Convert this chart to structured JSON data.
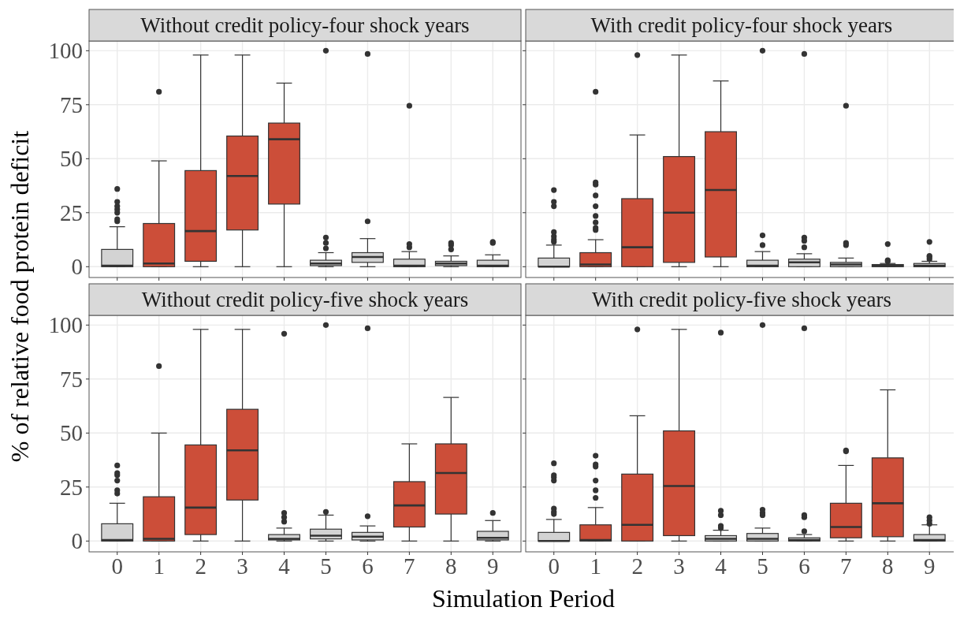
{
  "chart_data": [
    {
      "type": "box",
      "title": "Without credit policy-four shock years",
      "ylabel": "% of relative food protein deficit",
      "categories": [
        "0",
        "1",
        "2",
        "3",
        "4",
        "5",
        "6",
        "7",
        "8",
        "9"
      ],
      "ylim": [
        -5,
        104.5
      ],
      "yticks": [
        0,
        25,
        50,
        75,
        100
      ],
      "grid": true,
      "tick_labels": "y",
      "colors": [
        "#d3d3d3",
        "#cc4e39",
        "#cc4e39",
        "#cc4e39",
        "#cc4e39",
        "#d3d3d3",
        "#d3d3d3",
        "#d3d3d3",
        "#d3d3d3",
        "#d3d3d3"
      ],
      "boxes": [
        {
          "low": 0,
          "q1": 0,
          "median": 0.5,
          "q3": 8,
          "high": 18.5,
          "outliers": [
            21,
            22,
            25,
            26.5,
            28,
            30,
            36
          ]
        },
        {
          "low": 0,
          "q1": 0,
          "median": 1.5,
          "q3": 20,
          "high": 49,
          "outliers": [
            81
          ]
        },
        {
          "low": 0,
          "q1": 2.5,
          "median": 16.5,
          "q3": 44.5,
          "high": 98
        },
        {
          "low": 0,
          "q1": 17,
          "median": 42,
          "q3": 60.5,
          "high": 98
        },
        {
          "low": 0,
          "q1": 29,
          "median": 59,
          "q3": 66.5,
          "high": 85
        },
        {
          "low": 0,
          "q1": 0.5,
          "median": 1.5,
          "q3": 3,
          "high": 6.5,
          "outliers": [
            8.5,
            11,
            13.5,
            100
          ]
        },
        {
          "low": 0,
          "q1": 2,
          "median": 4.5,
          "q3": 6.5,
          "high": 13,
          "outliers": [
            21,
            98.5
          ]
        },
        {
          "low": 0,
          "q1": 0,
          "median": 0.5,
          "q3": 3.5,
          "high": 7,
          "outliers": [
            9,
            10.5,
            74.5
          ]
        },
        {
          "low": 0,
          "q1": 0.5,
          "median": 1.5,
          "q3": 2.5,
          "high": 5,
          "outliers": [
            8,
            10,
            11
          ]
        },
        {
          "low": 0,
          "q1": 0,
          "median": 0.5,
          "q3": 3,
          "high": 5.5,
          "outliers": [
            11,
            11.5
          ]
        }
      ]
    },
    {
      "type": "box",
      "title": "With credit policy-four shock years",
      "categories": [
        "0",
        "1",
        "2",
        "3",
        "4",
        "5",
        "6",
        "7",
        "8",
        "9"
      ],
      "ylim": [
        -5,
        104.5
      ],
      "yticks": [
        0,
        25,
        50,
        75,
        100
      ],
      "grid": true,
      "tick_labels": false,
      "colors": [
        "#d3d3d3",
        "#cc4e39",
        "#cc4e39",
        "#cc4e39",
        "#cc4e39",
        "#d3d3d3",
        "#d3d3d3",
        "#d3d3d3",
        "#d3d3d3",
        "#d3d3d3"
      ],
      "boxes": [
        {
          "low": 0,
          "q1": 0,
          "median": 0,
          "q3": 4,
          "high": 10,
          "outliers": [
            11.5,
            12.5,
            14,
            16,
            28,
            30,
            35.5
          ]
        },
        {
          "low": 0,
          "q1": 0,
          "median": 1,
          "q3": 6.5,
          "high": 12.5,
          "outliers": [
            17,
            18,
            20.5,
            23.5,
            28,
            33,
            38,
            39,
            81
          ]
        },
        {
          "low": 0,
          "q1": 0,
          "median": 9,
          "q3": 31.5,
          "high": 61,
          "outliers": [
            98
          ]
        },
        {
          "low": 0,
          "q1": 2,
          "median": 25,
          "q3": 51,
          "high": 98
        },
        {
          "low": 0,
          "q1": 4.5,
          "median": 35.5,
          "q3": 62.5,
          "high": 86
        },
        {
          "low": 0,
          "q1": 0,
          "median": 0.5,
          "q3": 3,
          "high": 7,
          "outliers": [
            10,
            14.5,
            100
          ]
        },
        {
          "low": 0,
          "q1": 0,
          "median": 2,
          "q3": 3.5,
          "high": 6,
          "outliers": [
            9,
            12,
            13.5,
            98.5
          ]
        },
        {
          "low": 0,
          "q1": 0,
          "median": 1,
          "q3": 2,
          "high": 4,
          "outliers": [
            10,
            11,
            74.5
          ]
        },
        {
          "low": 0,
          "q1": 0,
          "median": 0.5,
          "q3": 1,
          "high": 1.5,
          "outliers": [
            2.5,
            3,
            10.5
          ]
        },
        {
          "low": 0,
          "q1": 0,
          "median": 0.5,
          "q3": 1.5,
          "high": 2.5,
          "outliers": [
            3.5,
            4.5,
            5,
            11.5
          ]
        }
      ]
    },
    {
      "type": "box",
      "title": "Without credit policy-five shock years",
      "xlabel": "Simulation Period",
      "categories": [
        "0",
        "1",
        "2",
        "3",
        "4",
        "5",
        "6",
        "7",
        "8",
        "9"
      ],
      "ylim": [
        -5,
        104.5
      ],
      "yticks": [
        0,
        25,
        50,
        75,
        100
      ],
      "grid": true,
      "colors": [
        "#d3d3d3",
        "#cc4e39",
        "#cc4e39",
        "#cc4e39",
        "#d3d3d3",
        "#d3d3d3",
        "#d3d3d3",
        "#cc4e39",
        "#cc4e39",
        "#d3d3d3"
      ],
      "boxes": [
        {
          "low": 0,
          "q1": 0,
          "median": 0.5,
          "q3": 8,
          "high": 17.5,
          "outliers": [
            22,
            23.5,
            28,
            30.5,
            31.5,
            35
          ]
        },
        {
          "low": 0,
          "q1": 0,
          "median": 1,
          "q3": 20.5,
          "high": 50,
          "outliers": [
            81
          ]
        },
        {
          "low": 0,
          "q1": 3,
          "median": 15.5,
          "q3": 44.5,
          "high": 98
        },
        {
          "low": 0,
          "q1": 19,
          "median": 42,
          "q3": 61,
          "high": 98
        },
        {
          "low": 0,
          "q1": 0.5,
          "median": 1,
          "q3": 3,
          "high": 6,
          "outliers": [
            9,
            11,
            13,
            96
          ]
        },
        {
          "low": 0,
          "q1": 1,
          "median": 2.5,
          "q3": 5.5,
          "high": 12,
          "outliers": [
            13.5,
            100
          ]
        },
        {
          "low": 0,
          "q1": 0.5,
          "median": 2,
          "q3": 4,
          "high": 7,
          "outliers": [
            11.5,
            98.5
          ]
        },
        {
          "low": 0,
          "q1": 6.5,
          "median": 16.5,
          "q3": 27.5,
          "high": 45
        },
        {
          "low": 0,
          "q1": 12.5,
          "median": 31.5,
          "q3": 45,
          "high": 66.5
        },
        {
          "low": 0,
          "q1": 0.5,
          "median": 1.5,
          "q3": 4.5,
          "high": 9.5,
          "outliers": [
            13
          ]
        }
      ]
    },
    {
      "type": "box",
      "title": "With credit policy-five shock years",
      "categories": [
        "0",
        "1",
        "2",
        "3",
        "4",
        "5",
        "6",
        "7",
        "8",
        "9"
      ],
      "ylim": [
        -5,
        104.5
      ],
      "yticks": [
        0,
        25,
        50,
        75,
        100
      ],
      "grid": true,
      "tick_labels": "x",
      "colors": [
        "#d3d3d3",
        "#cc4e39",
        "#cc4e39",
        "#cc4e39",
        "#d3d3d3",
        "#d3d3d3",
        "#d3d3d3",
        "#cc4e39",
        "#cc4e39",
        "#d3d3d3"
      ],
      "boxes": [
        {
          "low": 0,
          "q1": 0,
          "median": 0,
          "q3": 4,
          "high": 10,
          "outliers": [
            12.5,
            13.5,
            15,
            28,
            29.5,
            30.5,
            36
          ]
        },
        {
          "low": 0,
          "q1": 0,
          "median": 0.5,
          "q3": 7.5,
          "high": 15.5,
          "outliers": [
            20,
            23.5,
            28,
            34.5,
            35.5,
            39.5
          ]
        },
        {
          "low": 0,
          "q1": 0,
          "median": 7.5,
          "q3": 31,
          "high": 58,
          "outliers": [
            98
          ]
        },
        {
          "low": 0,
          "q1": 2.5,
          "median": 25.5,
          "q3": 51,
          "high": 98
        },
        {
          "low": 0,
          "q1": 0,
          "median": 1,
          "q3": 2.5,
          "high": 5,
          "outliers": [
            6,
            7,
            12,
            14,
            96.5
          ]
        },
        {
          "low": 0,
          "q1": 0,
          "median": 1,
          "q3": 3.5,
          "high": 6,
          "outliers": [
            12,
            13,
            14.5,
            100
          ]
        },
        {
          "low": 0,
          "q1": 0,
          "median": 0.5,
          "q3": 1.5,
          "high": 3,
          "outliers": [
            4.5,
            11,
            12,
            98.5
          ]
        },
        {
          "low": 0,
          "q1": 1.5,
          "median": 6.5,
          "q3": 17.5,
          "high": 35,
          "outliers": [
            41.5,
            42
          ]
        },
        {
          "low": 0,
          "q1": 2,
          "median": 17.5,
          "q3": 38.5,
          "high": 70
        },
        {
          "low": 0,
          "q1": 0,
          "median": 0.5,
          "q3": 3,
          "high": 7.5,
          "outliers": [
            8,
            9.5,
            11
          ]
        }
      ]
    }
  ]
}
